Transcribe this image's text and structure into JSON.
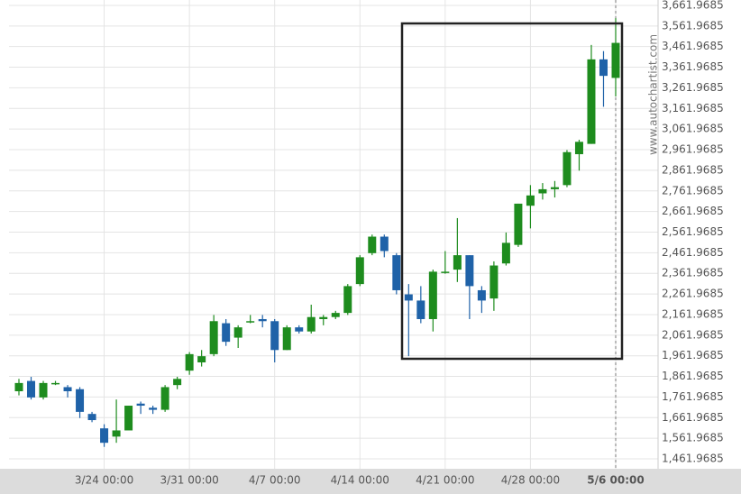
{
  "chart_data": {
    "type": "candlestick",
    "watermark": "www.autochartist.com",
    "categories": [
      null,
      null,
      null,
      null,
      null,
      null,
      null,
      "3/24 00:00",
      null,
      null,
      null,
      null,
      null,
      null,
      "3/31 00:00",
      null,
      null,
      null,
      null,
      null,
      null,
      "4/7 00:00",
      null,
      null,
      null,
      null,
      null,
      null,
      "4/14 00:00",
      null,
      null,
      null,
      null,
      null,
      null,
      "4/21 00:00",
      null,
      null,
      null,
      null,
      null,
      null,
      "4/28 00:00",
      null,
      null,
      null,
      null,
      null,
      null,
      "5/6 00:00"
    ],
    "open": [
      1790,
      1840,
      1760,
      1830,
      1810,
      1800,
      1680,
      1610,
      1570,
      1600,
      1730,
      1710,
      1700,
      1820,
      1890,
      1930,
      1970,
      2120,
      2050,
      2130,
      2140,
      2130,
      1990,
      2100,
      2080,
      2140,
      2150,
      2170,
      2310,
      2460,
      2540,
      2450,
      2260,
      2230,
      2140,
      2370,
      2380,
      2450,
      2280,
      2240,
      2410,
      2500,
      2690,
      2750,
      2770,
      2790,
      2940,
      2990,
      3400,
      3310
    ],
    "high": [
      1850,
      1860,
      1840,
      1840,
      1820,
      1810,
      1690,
      1630,
      1750,
      1720,
      1740,
      1720,
      1820,
      1860,
      1980,
      1990,
      2160,
      2140,
      2110,
      2160,
      2160,
      2140,
      2110,
      2110,
      2210,
      2160,
      2180,
      2310,
      2450,
      2550,
      2550,
      2460,
      2310,
      2300,
      2380,
      2470,
      2630,
      2450,
      2300,
      2420,
      2560,
      2700,
      2790,
      2800,
      2810,
      2960,
      3010,
      3470,
      3440,
      3600
    ],
    "low": [
      1770,
      1750,
      1750,
      1820,
      1760,
      1660,
      1640,
      1520,
      1540,
      1610,
      1680,
      1680,
      1690,
      1800,
      1870,
      1910,
      1960,
      2010,
      2000,
      2120,
      2100,
      1930,
      1990,
      2070,
      2070,
      2110,
      2140,
      2160,
      2300,
      2450,
      2440,
      2260,
      1960,
      2120,
      2080,
      2360,
      2320,
      2140,
      2170,
      2180,
      2400,
      2490,
      2580,
      2720,
      2730,
      2780,
      2860,
      2990,
      3170,
      3220
    ],
    "close": [
      1830,
      1760,
      1830,
      1830,
      1790,
      1690,
      1650,
      1540,
      1600,
      1720,
      1720,
      1700,
      1810,
      1850,
      1970,
      1960,
      2130,
      2030,
      2100,
      2130,
      2130,
      1990,
      2100,
      2080,
      2150,
      2150,
      2170,
      2300,
      2440,
      2540,
      2470,
      2280,
      2230,
      2140,
      2370,
      2370,
      2450,
      2300,
      2230,
      2400,
      2510,
      2700,
      2740,
      2770,
      2780,
      2950,
      3000,
      3400,
      3320,
      3480
    ],
    "up_color": "#1e8c1e",
    "down_color": "#1f62a8",
    "ylim": [
      1414,
      3688
    ],
    "yticks": [
      {
        "value": 1461.9685,
        "label": "1,461.9685"
      },
      {
        "value": 1561.9685,
        "label": "1,561.9685"
      },
      {
        "value": 1661.9685,
        "label": "1,661.9685"
      },
      {
        "value": 1761.9685,
        "label": "1,761.9685"
      },
      {
        "value": 1861.9685,
        "label": "1,861.9685"
      },
      {
        "value": 1961.9685,
        "label": "1,961.9685"
      },
      {
        "value": 2061.9685,
        "label": "2,061.9685"
      },
      {
        "value": 2161.9685,
        "label": "2,161.9685"
      },
      {
        "value": 2261.9685,
        "label": "2,261.9685"
      },
      {
        "value": 2361.9685,
        "label": "2,361.9685"
      },
      {
        "value": 2461.9685,
        "label": "2,461.9685"
      },
      {
        "value": 2561.9685,
        "label": "2,561.9685"
      },
      {
        "value": 2661.9685,
        "label": "2,661.9685"
      },
      {
        "value": 2761.9685,
        "label": "2,761.9685"
      },
      {
        "value": 2861.9685,
        "label": "2,861.9685"
      },
      {
        "value": 2961.9685,
        "label": "2,961.9685"
      },
      {
        "value": 3061.9685,
        "label": "3,061.9685"
      },
      {
        "value": 3161.9685,
        "label": "3,161.9685"
      },
      {
        "value": 3261.9685,
        "label": "3,261.9685"
      },
      {
        "value": 3361.9685,
        "label": "3,361.9685"
      },
      {
        "value": 3461.9685,
        "label": "3,461.9685"
      },
      {
        "value": 3561.9685,
        "label": "3,561.9685"
      },
      {
        "value": 3661.9685,
        "label": "3,661.9685"
      }
    ],
    "grid": true
  }
}
